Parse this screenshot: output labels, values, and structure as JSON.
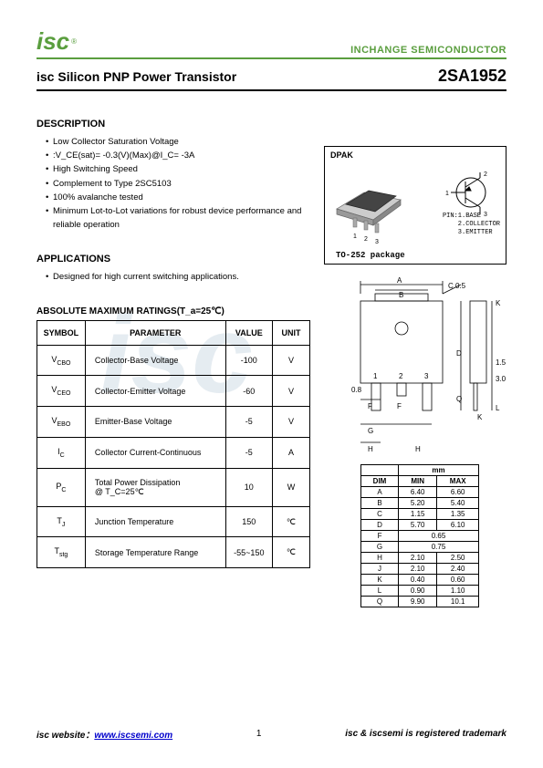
{
  "header": {
    "logo_text": "isc",
    "logo_reg": "®",
    "company": "INCHANGE SEMICONDUCTOR"
  },
  "title": {
    "product": "isc Silicon PNP Power Transistor",
    "part": "2SA1952"
  },
  "watermark": "isc",
  "description": {
    "heading": "DESCRIPTION",
    "items": [
      "Low Collector Saturation Voltage",
      ":V_CE(sat)= -0.3(V)(Max)@I_C= -3A",
      "High Switching Speed",
      "Complement to Type 2SC5103",
      "100% avalanche tested",
      "Minimum Lot-to-Lot variations for robust device performance and reliable operation"
    ]
  },
  "applications": {
    "heading": "APPLICATIONS",
    "items": [
      "Designed for high current switching applications."
    ]
  },
  "ratings": {
    "heading": "ABSOLUTE MAXIMUM RATINGS(T_a=25℃)",
    "columns": [
      "SYMBOL",
      "PARAMETER",
      "VALUE",
      "UNIT"
    ],
    "rows": [
      {
        "sym": "V_CBO",
        "param": "Collector-Base Voltage",
        "val": "-100",
        "unit": "V"
      },
      {
        "sym": "V_CEO",
        "param": "Collector-Emitter Voltage",
        "val": "-60",
        "unit": "V"
      },
      {
        "sym": "V_EBO",
        "param": "Emitter-Base Voltage",
        "val": "-5",
        "unit": "V"
      },
      {
        "sym": "I_C",
        "param": "Collector Current-Continuous",
        "val": "-5",
        "unit": "A"
      },
      {
        "sym": "P_C",
        "param": "Total Power Dissipation\n@ T_C=25℃",
        "val": "10",
        "unit": "W"
      },
      {
        "sym": "T_J",
        "param": "Junction Temperature",
        "val": "150",
        "unit": "℃"
      },
      {
        "sym": "T_stg",
        "param": "Storage Temperature Range",
        "val": "-55~150",
        "unit": "℃"
      }
    ],
    "col_widths": [
      "50px",
      "150px",
      "50px",
      "40px"
    ]
  },
  "package": {
    "label": "DPAK",
    "name": "TO-252 package",
    "pins": "PIN:1.BASE\n    2.COLLECTOR\n    3.EMITTER"
  },
  "dims": {
    "header": [
      "DIM",
      "MIN",
      "MAX"
    ],
    "unit_header": "mm",
    "rows": [
      {
        "d": "A",
        "min": "6.40",
        "max": "6.60"
      },
      {
        "d": "B",
        "min": "5.20",
        "max": "5.40"
      },
      {
        "d": "C",
        "min": "1.15",
        "max": "1.35"
      },
      {
        "d": "D",
        "min": "5.70",
        "max": "6.10"
      },
      {
        "d": "F",
        "min": "0.65",
        "max": ""
      },
      {
        "d": "G",
        "min": "0.75",
        "max": ""
      },
      {
        "d": "H",
        "min": "2.10",
        "max": "2.50"
      },
      {
        "d": "J",
        "min": "2.10",
        "max": "2.40"
      },
      {
        "d": "K",
        "min": "0.40",
        "max": "0.60"
      },
      {
        "d": "L",
        "min": "0.90",
        "max": "1.10"
      },
      {
        "d": "Q",
        "min": "9.90",
        "max": "10.1"
      }
    ]
  },
  "footer": {
    "website_label": "isc website：",
    "website_url": "www.iscsemi.com",
    "page": "1",
    "trademark": "isc & iscsemi is registered trademark"
  }
}
